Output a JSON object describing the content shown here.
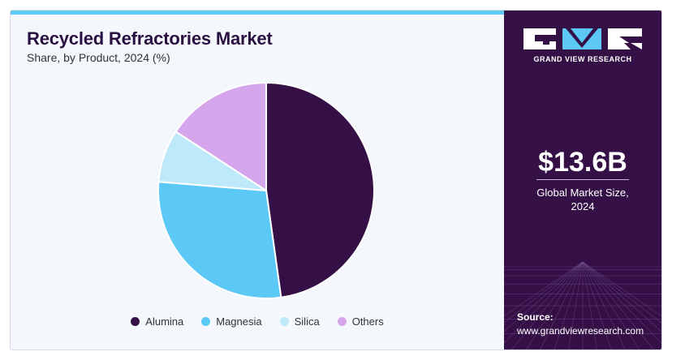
{
  "header": {
    "title": "Recycled Refractories Market",
    "subtitle": "Share, by Product, 2024 (%)"
  },
  "chart_data": {
    "type": "pie",
    "categories": [
      "Alumina",
      "Magnesia",
      "Silica",
      "Others"
    ],
    "values": [
      47.8,
      28.5,
      7.9,
      15.8
    ],
    "colors": [
      "#351046",
      "#5bc8f6",
      "#bde9fb",
      "#d5a6ec"
    ],
    "legend_position": "bottom"
  },
  "brand": {
    "logo_text": "GRAND VIEW RESEARCH",
    "logo_colors": [
      "#ffffff",
      "#5bc8f6"
    ]
  },
  "market": {
    "size_value": "$13.6B",
    "size_label_line1": "Global Market Size,",
    "size_label_line2": "2024"
  },
  "source": {
    "label": "Source:",
    "url": "www.grandviewresearch.com"
  }
}
